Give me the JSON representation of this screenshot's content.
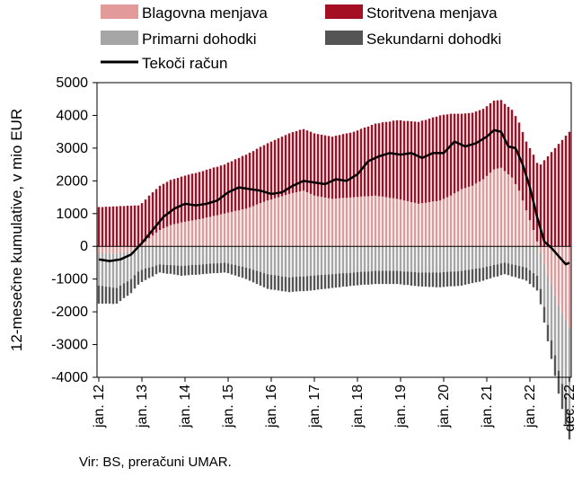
{
  "chart_data": {
    "type": "bar",
    "subtype": "stacked-bar-with-line",
    "ylabel": "12-mesečne kumulative, v mio EUR",
    "ylim": [
      -4000,
      5000
    ],
    "yticks": [
      -4000,
      -3000,
      -2000,
      -1000,
      0,
      1000,
      2000,
      3000,
      4000,
      5000
    ],
    "ytick_labels": [
      "-4000",
      "-3000",
      "-2000",
      "-1000",
      "0",
      "1000",
      "2000",
      "3000",
      "4000",
      "5000"
    ],
    "x_start": "2012-01",
    "x_end": "2022-12",
    "xtick_labels": [
      "jan. 12",
      "jan. 13",
      "jan. 14",
      "jan. 15",
      "jan. 16",
      "jan. 17",
      "jan. 18",
      "jan. 19",
      "jan. 20",
      "jan. 21",
      "jan. 22",
      "dec. 22"
    ],
    "grid": false,
    "legend_position": "top",
    "source": "Vir: BS, preračuni UMAR.",
    "series": [
      {
        "name": "Blagovna menjava",
        "kind": "bar",
        "color": "#e39a9a",
        "anchors": [
          [
            "2012-01",
            -200
          ],
          [
            "2012-06",
            -220
          ],
          [
            "2012-10",
            -150
          ],
          [
            "2013-01",
            50
          ],
          [
            "2013-03",
            250
          ],
          [
            "2013-06",
            500
          ],
          [
            "2013-09",
            650
          ],
          [
            "2014-01",
            750
          ],
          [
            "2014-06",
            850
          ],
          [
            "2014-12",
            1000
          ],
          [
            "2015-06",
            1150
          ],
          [
            "2015-12",
            1400
          ],
          [
            "2016-06",
            1600
          ],
          [
            "2016-10",
            1700
          ],
          [
            "2017-01",
            1550
          ],
          [
            "2017-06",
            1450
          ],
          [
            "2017-12",
            1500
          ],
          [
            "2018-06",
            1550
          ],
          [
            "2018-12",
            1450
          ],
          [
            "2019-06",
            1300
          ],
          [
            "2019-12",
            1400
          ],
          [
            "2020-03",
            1550
          ],
          [
            "2020-06",
            1750
          ],
          [
            "2020-09",
            1850
          ],
          [
            "2020-12",
            2050
          ],
          [
            "2021-03",
            2350
          ],
          [
            "2021-05",
            2400
          ],
          [
            "2021-08",
            2100
          ],
          [
            "2021-10",
            1700
          ],
          [
            "2021-12",
            1100
          ],
          [
            "2022-02",
            500
          ],
          [
            "2022-04",
            -200
          ],
          [
            "2022-06",
            -900
          ],
          [
            "2022-09",
            -1800
          ],
          [
            "2022-12",
            -2500
          ]
        ]
      },
      {
        "name": "Storitvena menjava",
        "kind": "bar",
        "color": "#a50f24",
        "anchors": [
          [
            "2012-01",
            1200
          ],
          [
            "2012-12",
            1250
          ],
          [
            "2013-06",
            1350
          ],
          [
            "2013-12",
            1400
          ],
          [
            "2014-06",
            1450
          ],
          [
            "2014-12",
            1500
          ],
          [
            "2015-06",
            1650
          ],
          [
            "2015-12",
            1750
          ],
          [
            "2016-06",
            1850
          ],
          [
            "2016-12",
            1900
          ],
          [
            "2017-06",
            1900
          ],
          [
            "2017-12",
            2000
          ],
          [
            "2018-06",
            2200
          ],
          [
            "2018-12",
            2400
          ],
          [
            "2019-06",
            2500
          ],
          [
            "2019-12",
            2600
          ],
          [
            "2020-03",
            2500
          ],
          [
            "2020-06",
            2300
          ],
          [
            "2020-12",
            2150
          ],
          [
            "2021-06",
            2050
          ],
          [
            "2021-12",
            2100
          ],
          [
            "2022-04",
            2500
          ],
          [
            "2022-08",
            3000
          ],
          [
            "2022-12",
            3500
          ]
        ]
      },
      {
        "name": "Primarni dohodki",
        "kind": "bar",
        "color": "#a6a6a6",
        "anchors": [
          [
            "2012-01",
            -1000
          ],
          [
            "2012-06",
            -1050
          ],
          [
            "2012-12",
            -750
          ],
          [
            "2013-06",
            -550
          ],
          [
            "2013-12",
            -600
          ],
          [
            "2014-06",
            -550
          ],
          [
            "2014-12",
            -500
          ],
          [
            "2015-06",
            -650
          ],
          [
            "2015-12",
            -850
          ],
          [
            "2016-06",
            -950
          ],
          [
            "2016-12",
            -900
          ],
          [
            "2017-06",
            -850
          ],
          [
            "2017-12",
            -800
          ],
          [
            "2018-06",
            -750
          ],
          [
            "2018-12",
            -750
          ],
          [
            "2019-06",
            -800
          ],
          [
            "2019-12",
            -800
          ],
          [
            "2020-06",
            -750
          ],
          [
            "2020-12",
            -650
          ],
          [
            "2021-06",
            -500
          ],
          [
            "2021-12",
            -650
          ],
          [
            "2022-03",
            -900
          ],
          [
            "2022-06",
            -1500
          ],
          [
            "2022-09",
            -2000
          ],
          [
            "2022-12",
            -2500
          ]
        ]
      },
      {
        "name": "Sekundarni dohodki",
        "kind": "bar",
        "color": "#555555",
        "anchors": [
          [
            "2012-01",
            -550
          ],
          [
            "2012-12",
            -400
          ],
          [
            "2013-06",
            -250
          ],
          [
            "2013-12",
            -300
          ],
          [
            "2014-06",
            -300
          ],
          [
            "2015-01",
            -300
          ],
          [
            "2015-06",
            -350
          ],
          [
            "2015-12",
            -450
          ],
          [
            "2016-06",
            -450
          ],
          [
            "2016-12",
            -450
          ],
          [
            "2017-12",
            -400
          ],
          [
            "2018-12",
            -400
          ],
          [
            "2019-12",
            -450
          ],
          [
            "2020-06",
            -450
          ],
          [
            "2020-12",
            -400
          ],
          [
            "2021-06",
            -350
          ],
          [
            "2021-12",
            -400
          ],
          [
            "2022-06",
            -500
          ],
          [
            "2022-09",
            -700
          ],
          [
            "2022-12",
            -900
          ]
        ]
      },
      {
        "name": "Tekoči račun",
        "kind": "line",
        "color": "#000000",
        "anchors": [
          [
            "2012-01",
            -400
          ],
          [
            "2012-04",
            -450
          ],
          [
            "2012-07",
            -400
          ],
          [
            "2012-10",
            -250
          ],
          [
            "2013-01",
            100
          ],
          [
            "2013-04",
            500
          ],
          [
            "2013-07",
            900
          ],
          [
            "2013-10",
            1150
          ],
          [
            "2014-01",
            1300
          ],
          [
            "2014-04",
            1250
          ],
          [
            "2014-07",
            1300
          ],
          [
            "2014-10",
            1400
          ],
          [
            "2015-01",
            1650
          ],
          [
            "2015-04",
            1800
          ],
          [
            "2015-07",
            1750
          ],
          [
            "2015-10",
            1700
          ],
          [
            "2016-01",
            1600
          ],
          [
            "2016-04",
            1650
          ],
          [
            "2016-07",
            1850
          ],
          [
            "2016-10",
            2000
          ],
          [
            "2017-01",
            1950
          ],
          [
            "2017-04",
            1900
          ],
          [
            "2017-07",
            2050
          ],
          [
            "2017-10",
            2000
          ],
          [
            "2018-01",
            2200
          ],
          [
            "2018-04",
            2600
          ],
          [
            "2018-07",
            2750
          ],
          [
            "2018-10",
            2850
          ],
          [
            "2019-01",
            2800
          ],
          [
            "2019-04",
            2850
          ],
          [
            "2019-07",
            2700
          ],
          [
            "2019-10",
            2850
          ],
          [
            "2020-01",
            2850
          ],
          [
            "2020-04",
            3200
          ],
          [
            "2020-07",
            3050
          ],
          [
            "2020-10",
            3150
          ],
          [
            "2021-01",
            3350
          ],
          [
            "2021-03",
            3550
          ],
          [
            "2021-05",
            3500
          ],
          [
            "2021-07",
            3050
          ],
          [
            "2021-09",
            3000
          ],
          [
            "2021-11",
            2500
          ],
          [
            "2022-01",
            1800
          ],
          [
            "2022-03",
            900
          ],
          [
            "2022-05",
            150
          ],
          [
            "2022-07",
            -50
          ],
          [
            "2022-09",
            -300
          ],
          [
            "2022-11",
            -550
          ],
          [
            "2022-12",
            -500
          ]
        ]
      }
    ]
  }
}
